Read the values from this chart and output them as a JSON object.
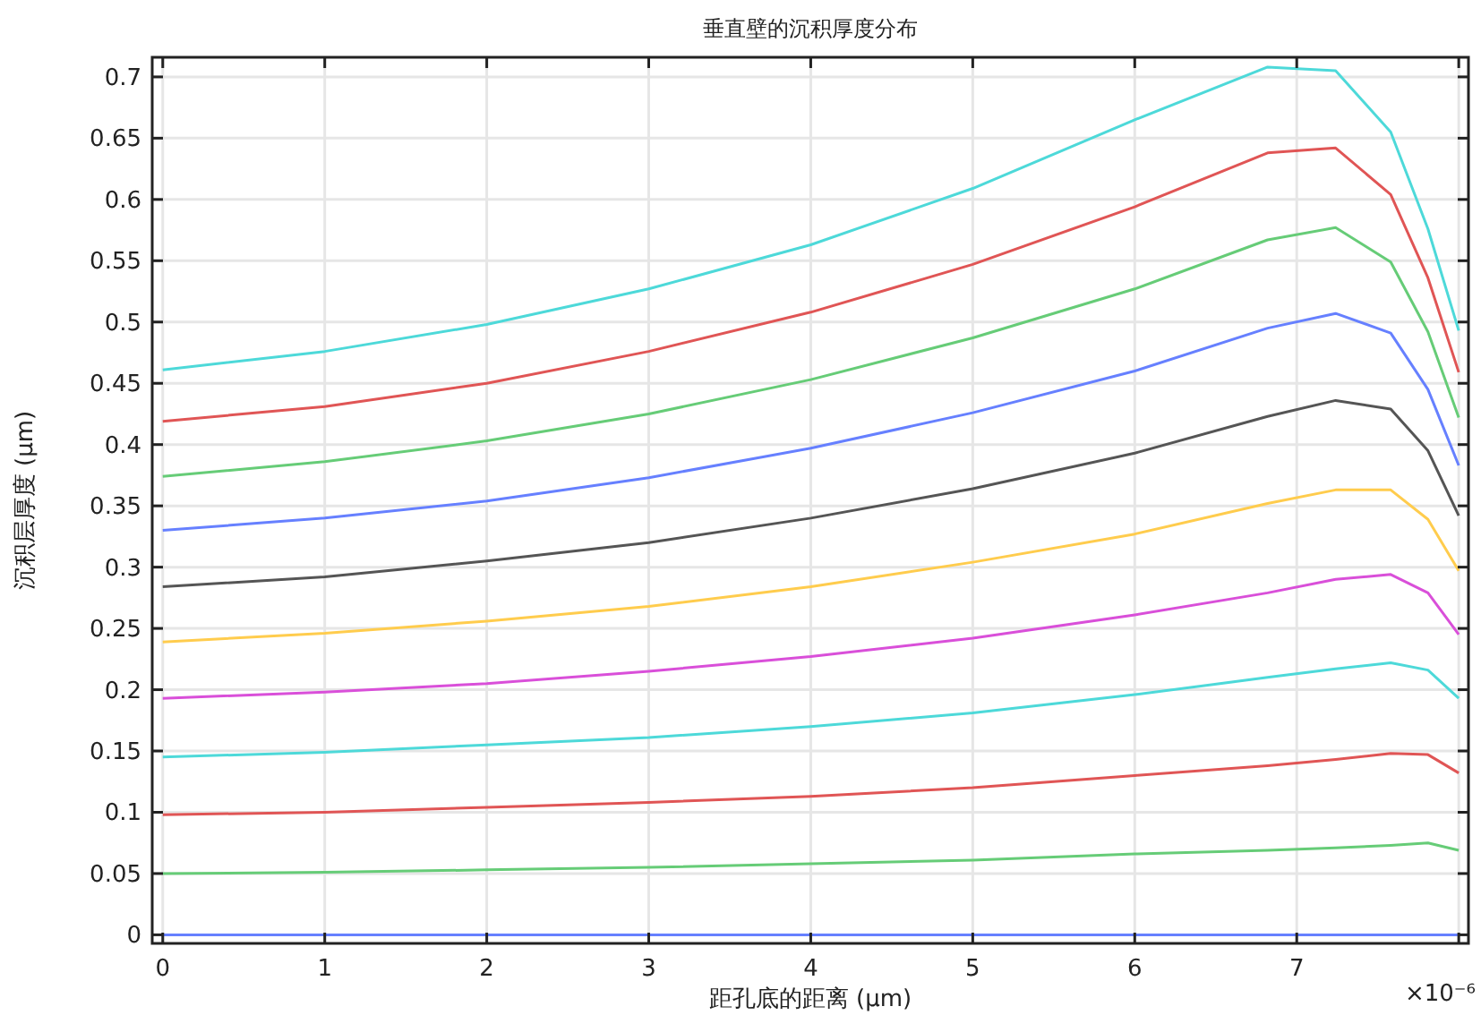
{
  "chart_data": {
    "type": "line",
    "title": "垂直壁的沉积厚度分布",
    "xlabel": "距孔底的距离 (µm)",
    "ylabel": "沉积层厚度 (µm)",
    "x": [
      0,
      1,
      2,
      3,
      4,
      5,
      6,
      6.82,
      7.24,
      7.58,
      7.81,
      8.0
    ],
    "xlim": [
      -0.065,
      8.06
    ],
    "xticks": [
      0,
      1,
      2,
      3,
      4,
      5,
      6,
      7,
      {
        "value": 8,
        "label": null
      }
    ],
    "annotations": [
      "×10⁻⁶"
    ],
    "ylim": [
      -0.007,
      0.716
    ],
    "yticks": [
      0,
      0.05,
      0.1,
      0.15,
      0.2,
      0.25,
      0.3,
      0.35,
      0.4,
      0.45,
      0.5,
      0.55,
      0.6,
      0.65,
      0.7
    ],
    "grid": true,
    "line_style": "solid",
    "series": [
      {
        "color": "#6680ff",
        "values": [
          0,
          0,
          0,
          0,
          0,
          0,
          0,
          0,
          0,
          0,
          0,
          0
        ]
      },
      {
        "color": "#66cc77",
        "values": [
          0.05,
          0.051,
          0.053,
          0.055,
          0.058,
          0.061,
          0.066,
          0.069,
          0.071,
          0.073,
          0.075,
          0.069
        ]
      },
      {
        "color": "#e05555",
        "values": [
          0.098,
          0.1,
          0.104,
          0.108,
          0.113,
          0.12,
          0.13,
          0.138,
          0.143,
          0.148,
          0.147,
          0.132
        ]
      },
      {
        "color": "#4dd9d9",
        "values": [
          0.145,
          0.149,
          0.155,
          0.161,
          0.17,
          0.181,
          0.196,
          0.21,
          0.217,
          0.222,
          0.216,
          0.193
        ]
      },
      {
        "color": "#d94fd9",
        "values": [
          0.193,
          0.198,
          0.205,
          0.215,
          0.227,
          0.242,
          0.261,
          0.279,
          0.29,
          0.294,
          0.279,
          0.245
        ]
      },
      {
        "color": "#ffcc4d",
        "values": [
          0.239,
          0.246,
          0.256,
          0.268,
          0.284,
          0.304,
          0.327,
          0.352,
          0.363,
          0.363,
          0.339,
          0.297
        ]
      },
      {
        "color": "#555555",
        "values": [
          0.284,
          0.292,
          0.305,
          0.32,
          0.34,
          0.364,
          0.393,
          0.423,
          0.436,
          0.429,
          0.395,
          0.342
        ]
      },
      {
        "color": "#6680ff",
        "values": [
          0.33,
          0.34,
          0.354,
          0.373,
          0.397,
          0.426,
          0.46,
          0.495,
          0.507,
          0.491,
          0.445,
          0.383
        ]
      },
      {
        "color": "#66cc77",
        "values": [
          0.374,
          0.386,
          0.403,
          0.425,
          0.453,
          0.487,
          0.527,
          0.567,
          0.577,
          0.549,
          0.492,
          0.422
        ]
      },
      {
        "color": "#e05555",
        "values": [
          0.419,
          0.431,
          0.45,
          0.476,
          0.508,
          0.547,
          0.594,
          0.638,
          0.642,
          0.604,
          0.536,
          0.459
        ]
      },
      {
        "color": "#4dd9d9",
        "values": [
          0.461,
          0.476,
          0.498,
          0.527,
          0.563,
          0.609,
          0.665,
          0.708,
          0.705,
          0.655,
          0.576,
          0.493
        ]
      }
    ]
  }
}
